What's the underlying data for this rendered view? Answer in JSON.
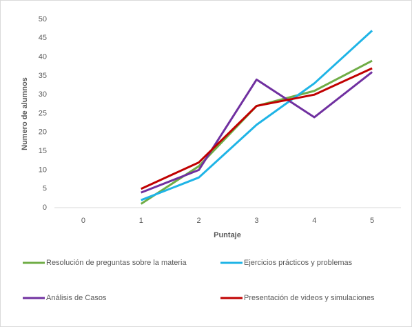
{
  "chart_data": {
    "type": "line",
    "x_label": "Puntaje",
    "y_label": "Numero de alumnos",
    "categories": [
      "0",
      "1",
      "2",
      "3",
      "4",
      "5"
    ],
    "series": [
      {
        "name": "Resolución de preguntas sobre la materia",
        "color": "#70ad47",
        "values": [
          null,
          1,
          11,
          27,
          31,
          39
        ]
      },
      {
        "name": "Ejercicios prácticos y problemas",
        "color": "#1fb4e6",
        "values": [
          null,
          2,
          8,
          22,
          33,
          47
        ]
      },
      {
        "name": "Análisis de Casos",
        "color": "#7030a0",
        "values": [
          null,
          4,
          10,
          34,
          24,
          36
        ]
      },
      {
        "name": "Presentación de videos y simulaciones",
        "color": "#c00000",
        "values": [
          null,
          5,
          12,
          27,
          30,
          37
        ]
      }
    ],
    "ylim": [
      0,
      50
    ],
    "yticks": [
      0,
      5,
      10,
      15,
      20,
      25,
      30,
      35,
      40,
      45,
      50
    ],
    "grid": false
  }
}
